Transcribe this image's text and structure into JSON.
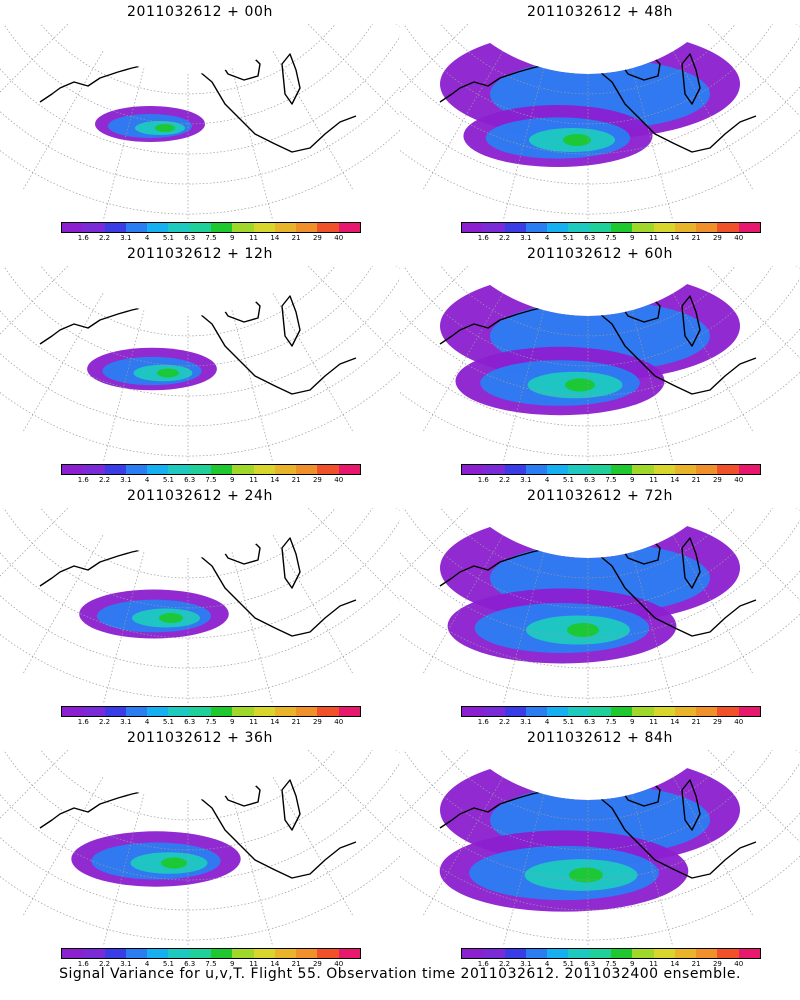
{
  "caption": "Signal Variance for u,v,T. Flight 55. Observation time 2011032612. 2011032400 ensemble.",
  "colorbar": {
    "labels": [
      "1.6",
      "2.2",
      "3.1",
      "4",
      "5.1",
      "6.3",
      "7.5",
      "9",
      "11",
      "14",
      "21",
      "29",
      "40"
    ],
    "colors": [
      "#8c1fd0",
      "#7a2ad6",
      "#3a3de6",
      "#2b7df2",
      "#16b0f0",
      "#1ec9c0",
      "#1fd09a",
      "#1ec82e",
      "#9fd82a",
      "#d8d62c",
      "#e8b42a",
      "#f0902a",
      "#f0502a",
      "#e8186e"
    ]
  },
  "panels": [
    {
      "title": "2011032612 + 00h",
      "level": 0
    },
    {
      "title": "2011032612 + 48h",
      "level": 4
    },
    {
      "title": "2011032612 + 12h",
      "level": 1
    },
    {
      "title": "2011032612 + 60h",
      "level": 5
    },
    {
      "title": "2011032612 + 24h",
      "level": 2
    },
    {
      "title": "2011032612 + 72h",
      "level": 6
    },
    {
      "title": "2011032612 + 36h",
      "level": 3
    },
    {
      "title": "2011032612 + 84h",
      "level": 7
    }
  ]
}
